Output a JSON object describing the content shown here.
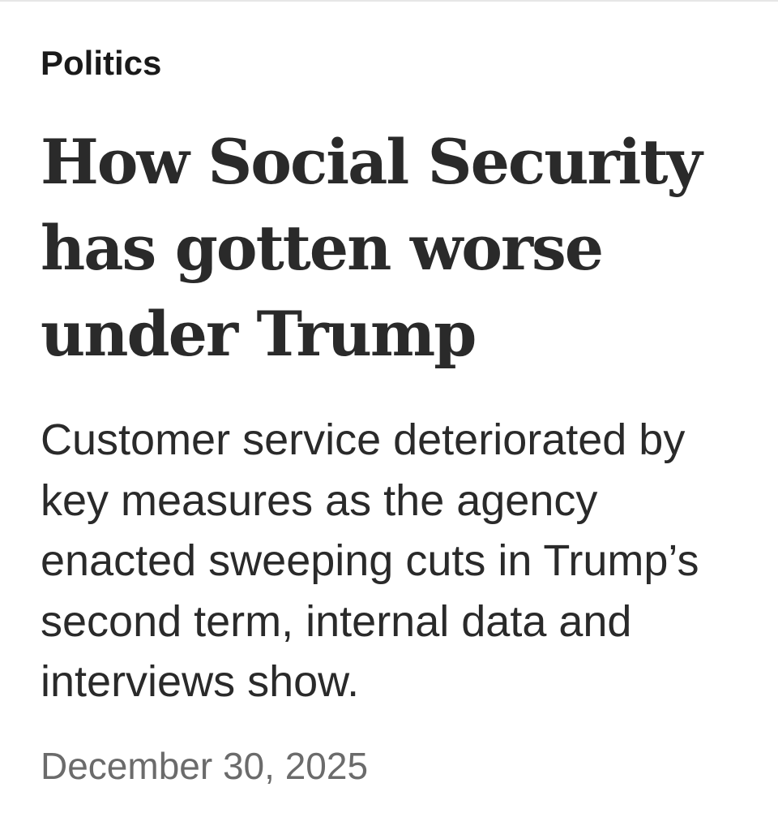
{
  "article": {
    "section": "Politics",
    "headline": "How Social Security has gotten worse under Trump",
    "dek": "Customer service deteriorated by key measures as the agency enacted sweeping cuts in Trump’s second term, internal data and interviews show.",
    "date": "December 30, 2025"
  },
  "colors": {
    "text": "#2a2a2a",
    "section": "#1a1a1a",
    "date": "#6b6b6b",
    "background": "#ffffff"
  }
}
